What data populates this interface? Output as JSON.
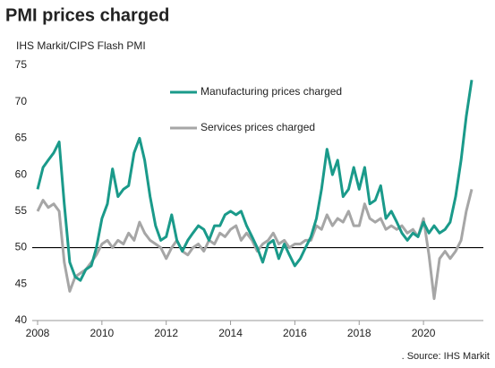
{
  "chart_data": {
    "type": "line",
    "title": "PMI prices charged",
    "subtitle": "IHS Markit/CIPS Flash PMI",
    "source": ". Source: IHS Markit",
    "x": [
      2008,
      2008.17,
      2008.33,
      2008.5,
      2008.67,
      2008.83,
      2009,
      2009.17,
      2009.33,
      2009.5,
      2009.67,
      2009.83,
      2010,
      2010.17,
      2010.33,
      2010.5,
      2010.67,
      2010.83,
      2011,
      2011.17,
      2011.33,
      2011.5,
      2011.67,
      2011.83,
      2012,
      2012.17,
      2012.33,
      2012.5,
      2012.67,
      2012.83,
      2013,
      2013.17,
      2013.33,
      2013.5,
      2013.67,
      2013.83,
      2014,
      2014.17,
      2014.33,
      2014.5,
      2014.67,
      2014.83,
      2015,
      2015.17,
      2015.33,
      2015.5,
      2015.67,
      2015.83,
      2016,
      2016.17,
      2016.33,
      2016.5,
      2016.67,
      2016.83,
      2017,
      2017.17,
      2017.33,
      2017.5,
      2017.67,
      2017.83,
      2018,
      2018.17,
      2018.33,
      2018.5,
      2018.67,
      2018.83,
      2019,
      2019.17,
      2019.33,
      2019.5,
      2019.67,
      2019.83,
      2020,
      2020.17,
      2020.33,
      2020.5,
      2020.67,
      2020.83,
      2021,
      2021.17,
      2021.33,
      2021.5
    ],
    "series": [
      {
        "name": "Manufacturing prices charged",
        "color": "#1a9a8a",
        "values": [
          58,
          61,
          62,
          63,
          64.5,
          56,
          48,
          46,
          45.5,
          47,
          47.5,
          50,
          54,
          56,
          60.8,
          57,
          58,
          58.5,
          63,
          65,
          62,
          57,
          53,
          51,
          51.5,
          54.5,
          51,
          49.5,
          51,
          52,
          53,
          52.5,
          51,
          53,
          53,
          54.5,
          55,
          54.5,
          55,
          53,
          51.5,
          50,
          48,
          50.5,
          51,
          48.5,
          50.5,
          49,
          47.5,
          48.5,
          50,
          51.5,
          54,
          58,
          63.5,
          60,
          62,
          57,
          58,
          61,
          58,
          61,
          56,
          56.5,
          58.5,
          54,
          55,
          53.5,
          52,
          51,
          52,
          51.5,
          53.5,
          52,
          53,
          52,
          52.5,
          53.5,
          57,
          62,
          68,
          73
        ]
      },
      {
        "name": "Services prices charged",
        "color": "#a6a6a6",
        "values": [
          55,
          56.5,
          55.5,
          56,
          55,
          48,
          44,
          46,
          46.5,
          47,
          48,
          49,
          50.5,
          51,
          50,
          51,
          50.5,
          52,
          51,
          53.5,
          52,
          51,
          50.5,
          50,
          48.5,
          50,
          51,
          49.5,
          49,
          50,
          50.5,
          49.5,
          51,
          50.5,
          52,
          51.5,
          52.5,
          53,
          51,
          52,
          51,
          49.5,
          50.5,
          51,
          52,
          50.5,
          51,
          50,
          50.5,
          50.5,
          51,
          51,
          53,
          52.5,
          54.5,
          53,
          54,
          53.5,
          55,
          53,
          53,
          56,
          54,
          53.5,
          54,
          52.5,
          53,
          52.5,
          53,
          52,
          52.5,
          51.5,
          54,
          49,
          43,
          48.5,
          49.5,
          48.5,
          49.5,
          51,
          55,
          58
        ]
      }
    ],
    "xlim": [
      2008,
      2021.5
    ],
    "xticks": [
      2008,
      2010,
      2012,
      2014,
      2016,
      2018,
      2020
    ],
    "ylim": [
      40,
      75
    ],
    "yticks": [
      40,
      45,
      50,
      55,
      60,
      65,
      70,
      75
    ],
    "hline": 50,
    "grid": false
  }
}
